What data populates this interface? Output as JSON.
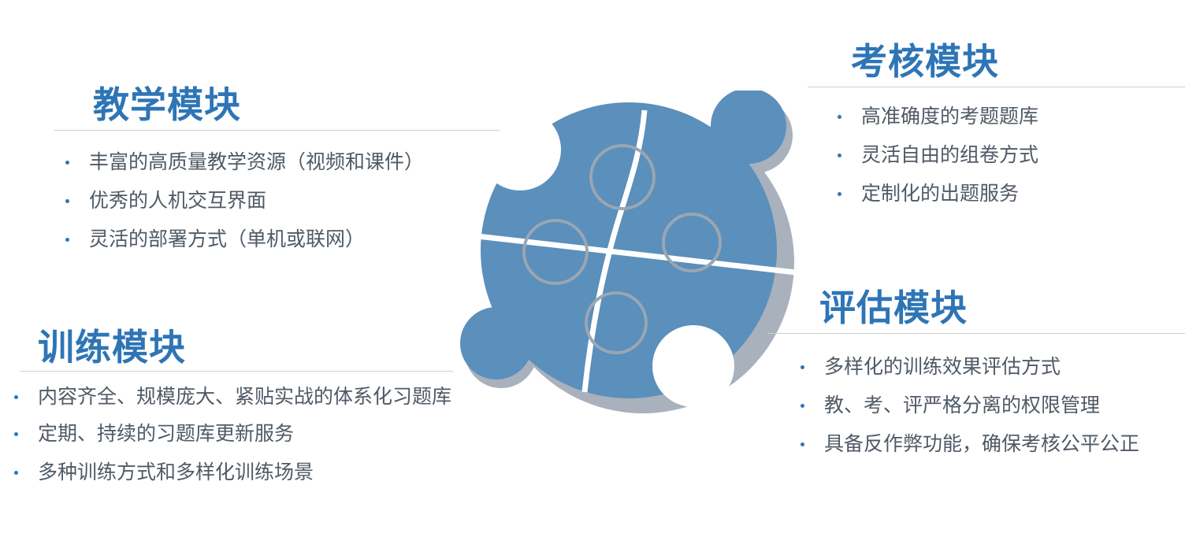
{
  "teaching": {
    "title": "教学模块",
    "items": [
      "丰富的高质量教学资源（视频和课件）",
      "优秀的人机交互界面",
      "灵活的部署方式（单机或联网）"
    ]
  },
  "exam": {
    "title": "考核模块",
    "items": [
      "高准确度的考题题库",
      "灵活自由的组卷方式",
      "定制化的出题服务"
    ]
  },
  "training": {
    "title": "训练模块",
    "items": [
      "内容齐全、规模庞大、紧贴实战的体系化习题库",
      "定期、持续的习题库更新服务",
      "多种训练方式和多样化训练场景"
    ]
  },
  "evaluation": {
    "title": "评估模块",
    "items": [
      "多样化的训练效果评估方式",
      "教、考、评严格分离的权限管理",
      "具备反作弊功能，确保考核公平公正"
    ]
  },
  "colors": {
    "title": "#2e75b6",
    "text": "#4f5a66",
    "bullet": "#2e75b6",
    "puzzle_face": "#5b8fbc",
    "puzzle_side": "#a8b1bc",
    "rule": "#d0d0d0"
  }
}
